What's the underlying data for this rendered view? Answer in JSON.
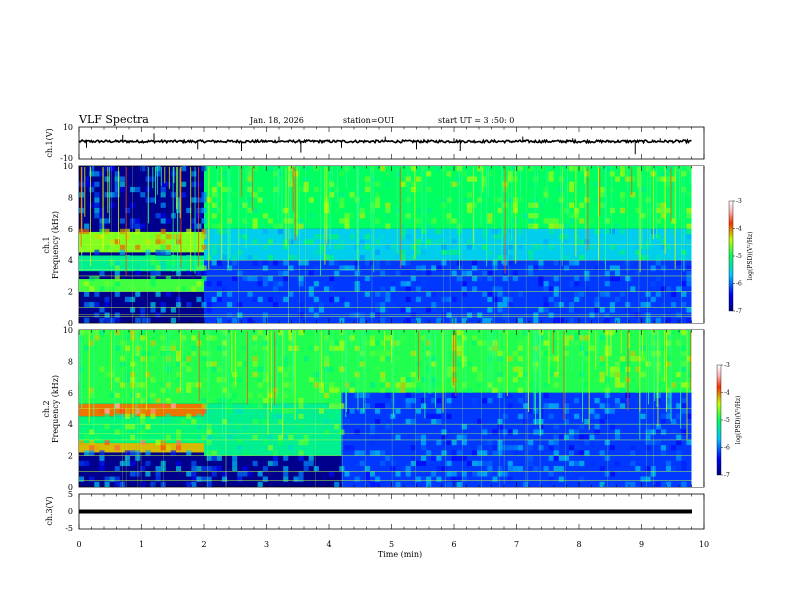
{
  "header": {
    "title": "VLF Spectra",
    "date": "Jan. 18, 2026",
    "station": "station=OUI",
    "start": "start UT =  3 :50: 0"
  },
  "chart_data": [
    {
      "type": "line",
      "panel": "ch1-waveform",
      "ylabel": "ch.1(V)",
      "ylim": [
        -10,
        10
      ],
      "yticks": [
        "10",
        "-10"
      ],
      "x_range_min": [
        0,
        9.8
      ],
      "baseline_v": 1.0,
      "spikes": [
        {
          "t": 0.12,
          "v": -3
        },
        {
          "t": 0.7,
          "v": 5
        },
        {
          "t": 1.2,
          "v": 6
        },
        {
          "t": 1.9,
          "v": -4
        },
        {
          "t": 2.6,
          "v": -5
        },
        {
          "t": 3.2,
          "v": 4
        },
        {
          "t": 3.55,
          "v": -6
        },
        {
          "t": 4.2,
          "v": -3
        },
        {
          "t": 4.9,
          "v": 4
        },
        {
          "t": 5.4,
          "v": -4
        },
        {
          "t": 6.0,
          "v": 3
        },
        {
          "t": 6.1,
          "v": -5
        },
        {
          "t": 7.1,
          "v": 4
        },
        {
          "t": 7.9,
          "v": 3
        },
        {
          "t": 8.9,
          "v": -7
        },
        {
          "t": 9.3,
          "v": 3
        }
      ]
    },
    {
      "type": "heatmap",
      "panel": "ch1-spectrogram",
      "ylabel_top": "ch.1",
      "ylabel": "Frequency (kHz)",
      "ylim": [
        0,
        10
      ],
      "yticks": [
        "0",
        "2",
        "4",
        "6",
        "8",
        "10"
      ],
      "colorbar": {
        "label": "log(PSD)(V²/Hz)",
        "ticks": [
          "-3",
          "-4",
          "-5",
          "-6",
          "-7"
        ],
        "range": [
          -7,
          -3
        ]
      },
      "regimes": [
        {
          "t_start": 0,
          "t_end": 2.0,
          "bands": [
            [
              4.5,
              5.8,
              -4.6
            ],
            [
              2.0,
              2.8,
              -4.8
            ],
            [
              3.3,
              4.3,
              -5.2
            ]
          ]
        },
        {
          "t_start": 2.0,
          "t_end": 9.8,
          "bands": [
            [
              6.0,
              10,
              -5.0
            ],
            [
              4.0,
              6.0,
              -5.6
            ],
            [
              0,
              4.0,
              -6.2
            ]
          ]
        }
      ],
      "noise_lines_khz": [
        0.4,
        0.55,
        1.0,
        2.0,
        3.0,
        3.4,
        4.0,
        5.0
      ]
    },
    {
      "type": "heatmap",
      "panel": "ch2-spectrogram",
      "ylabel_top": "ch.2",
      "ylabel": "Frequency (kHz)",
      "ylim": [
        0,
        10
      ],
      "yticks": [
        "0",
        "2",
        "4",
        "6",
        "8",
        "10"
      ],
      "colorbar": {
        "label": "log(PSD)(V²/Hz)",
        "ticks": [
          "-3",
          "-4",
          "-5",
          "-6",
          "-7"
        ],
        "range": [
          -7,
          -3
        ]
      },
      "regimes": [
        {
          "t_start": 0,
          "t_end": 2.0,
          "bands": [
            [
              4.5,
              5.3,
              -4.0
            ],
            [
              2.2,
              2.8,
              -4.2
            ],
            [
              5.3,
              10,
              -4.9
            ],
            [
              2.8,
              4.5,
              -5.1
            ]
          ]
        },
        {
          "t_start": 2.0,
          "t_end": 4.2,
          "bands": [
            [
              5.3,
              10,
              -4.9
            ],
            [
              2.0,
              5.3,
              -5.2
            ]
          ]
        },
        {
          "t_start": 4.2,
          "t_end": 9.8,
          "bands": [
            [
              6.0,
              10,
              -4.9
            ],
            [
              0,
              6.0,
              -6.2
            ]
          ]
        }
      ],
      "noise_lines_khz": [
        0.4,
        1.0,
        2.0,
        3.0,
        3.4,
        4.0,
        5.0
      ]
    },
    {
      "type": "line",
      "panel": "ch3-waveform",
      "ylabel": "ch.3(V)",
      "ylim": [
        -5,
        5
      ],
      "yticks": [
        "5",
        "0",
        "-5"
      ],
      "baseline_v": 0,
      "xlabel": "Time (min)",
      "xlim": [
        0,
        10
      ],
      "xticks": [
        "0",
        "1",
        "2",
        "3",
        "4",
        "5",
        "6",
        "7",
        "8",
        "9",
        "10"
      ]
    }
  ]
}
